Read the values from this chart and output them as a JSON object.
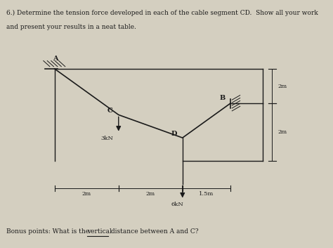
{
  "background_color": "#d4cfc0",
  "title_line1": "6.) Determine the tension force developed in each of the cable segment CD.  Show all your work",
  "title_line2": "and present your results in a neat table.",
  "bonus_pre": "Bonus points: What is the ",
  "bonus_underlined": "vertical",
  "bonus_post": " distance between A and C?",
  "fig_width": 4.74,
  "fig_height": 3.53,
  "dpi": 100,
  "A": [
    2.0,
    6.5
  ],
  "C": [
    4.0,
    4.5
  ],
  "D": [
    6.0,
    3.5
  ],
  "B": [
    7.5,
    5.0
  ],
  "E": [
    6.0,
    1.5
  ],
  "right_wall_x": 8.5,
  "bottom_y": 2.5,
  "line_color": "#1a1a1a",
  "text_color": "#1a1a1a",
  "fontsize_title": 6.5,
  "fontsize_labels": 7,
  "fontsize_dims": 6,
  "fontsize_bonus": 6.5,
  "xlim": [
    0.5,
    10.5
  ],
  "ylim": [
    0.0,
    8.2
  ]
}
